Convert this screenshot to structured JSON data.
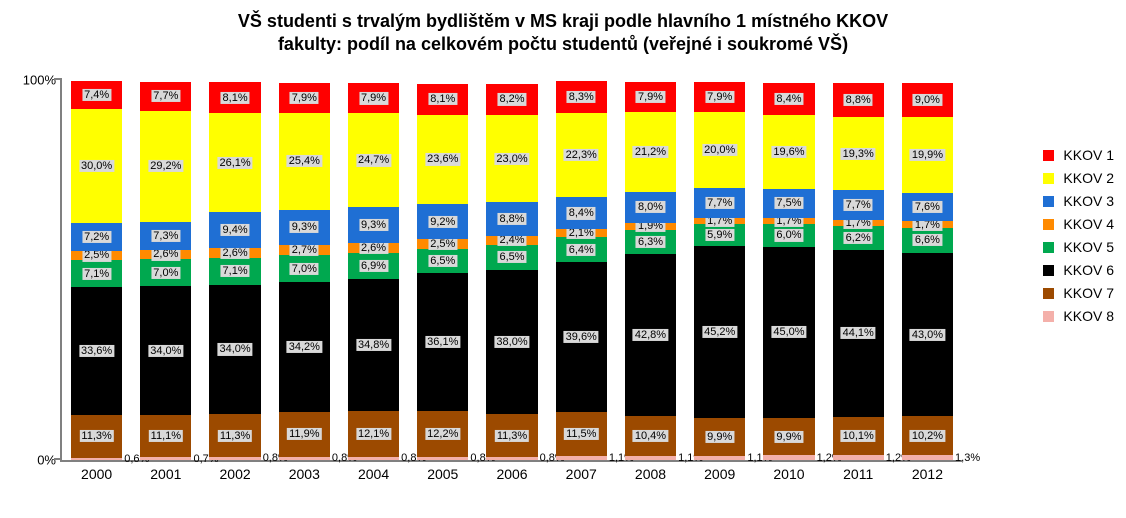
{
  "title_line1": "VŠ studenti s trvalým bydlištěm v MS kraji podle hlavního 1 místného KKOV",
  "title_line2": "fakulty: podíl na celkovém počtu studentů (veřejné i soukromé VŠ)",
  "title_fontsize": 18,
  "chart": {
    "type": "stacked-bar-100",
    "background_color": "#ffffff",
    "axis_color": "#808080",
    "ylim": [
      0,
      100
    ],
    "yticks": [
      {
        "pos": 0,
        "label": "0%"
      },
      {
        "pos": 100,
        "label": "100%"
      }
    ],
    "years": [
      "2000",
      "2001",
      "2002",
      "2003",
      "2004",
      "2005",
      "2006",
      "2007",
      "2008",
      "2009",
      "2010",
      "2011",
      "2012"
    ],
    "series": [
      {
        "key": "k8",
        "name": "KKOV 8",
        "color": "#f4b0aa"
      },
      {
        "key": "k7",
        "name": "KKOV 7",
        "color": "#9c4a00"
      },
      {
        "key": "k6",
        "name": "KKOV 6",
        "color": "#000000"
      },
      {
        "key": "k5",
        "name": "KKOV 5",
        "color": "#00a84f"
      },
      {
        "key": "k4",
        "name": "KKOV 4",
        "color": "#ff8a00"
      },
      {
        "key": "k3",
        "name": "KKOV 3",
        "color": "#1f6fd4"
      },
      {
        "key": "k2",
        "name": "KKOV 2",
        "color": "#ffff00"
      },
      {
        "key": "k1",
        "name": "KKOV 1",
        "color": "#ff0000"
      }
    ],
    "legend_order": [
      "k1",
      "k2",
      "k3",
      "k4",
      "k5",
      "k6",
      "k7",
      "k8"
    ],
    "label_bg": "#d9d9d9",
    "label_fontsize": 11,
    "xlabel_fontsize": 14,
    "data": {
      "2000": {
        "k1": 7.4,
        "k2": 30.0,
        "k3": 7.2,
        "k4": 2.5,
        "k5": 7.1,
        "k6": 33.6,
        "k7": 11.3,
        "k8": 0.6
      },
      "2001": {
        "k1": 7.7,
        "k2": 29.2,
        "k3": 7.3,
        "k4": 2.6,
        "k5": 7.0,
        "k6": 34.0,
        "k7": 11.1,
        "k8": 0.7
      },
      "2002": {
        "k1": 8.1,
        "k2": 26.1,
        "k3": 9.4,
        "k4": 2.6,
        "k5": 7.1,
        "k6": 34.0,
        "k7": 11.3,
        "k8": 0.8
      },
      "2003": {
        "k1": 7.9,
        "k2": 25.4,
        "k3": 9.3,
        "k4": 2.7,
        "k5": 7.0,
        "k6": 34.2,
        "k7": 11.9,
        "k8": 0.8
      },
      "2004": {
        "k1": 7.9,
        "k2": 24.7,
        "k3": 9.3,
        "k4": 2.6,
        "k5": 6.9,
        "k6": 34.8,
        "k7": 12.1,
        "k8": 0.8
      },
      "2005": {
        "k1": 8.1,
        "k2": 23.6,
        "k3": 9.2,
        "k4": 2.5,
        "k5": 6.5,
        "k6": 36.1,
        "k7": 12.2,
        "k8": 0.8
      },
      "2006": {
        "k1": 8.2,
        "k2": 23.0,
        "k3": 8.8,
        "k4": 2.4,
        "k5": 6.5,
        "k6": 38.0,
        "k7": 11.3,
        "k8": 0.8
      },
      "2007": {
        "k1": 8.3,
        "k2": 22.3,
        "k3": 8.4,
        "k4": 2.1,
        "k5": 6.4,
        "k6": 39.6,
        "k7": 11.5,
        "k8": 1.1
      },
      "2008": {
        "k1": 7.9,
        "k2": 21.2,
        "k3": 8.0,
        "k4": 1.9,
        "k5": 6.3,
        "k6": 42.8,
        "k7": 10.4,
        "k8": 1.1
      },
      "2009": {
        "k1": 7.9,
        "k2": 20.0,
        "k3": 7.7,
        "k4": 1.7,
        "k5": 5.9,
        "k6": 45.2,
        "k7": 9.9,
        "k8": 1.1
      },
      "2010": {
        "k1": 8.4,
        "k2": 19.6,
        "k3": 7.5,
        "k4": 1.7,
        "k5": 6.0,
        "k6": 45.0,
        "k7": 9.9,
        "k8": 1.2
      },
      "2011": {
        "k1": 8.8,
        "k2": 19.3,
        "k3": 7.7,
        "k4": 1.7,
        "k5": 6.2,
        "k6": 44.1,
        "k7": 10.1,
        "k8": 1.2
      },
      "2012": {
        "k1": 9.0,
        "k2": 19.9,
        "k3": 7.6,
        "k4": 1.7,
        "k5": 6.6,
        "k6": 43.0,
        "k7": 10.2,
        "k8": 1.3
      }
    },
    "label_outside": [
      "k8"
    ]
  }
}
